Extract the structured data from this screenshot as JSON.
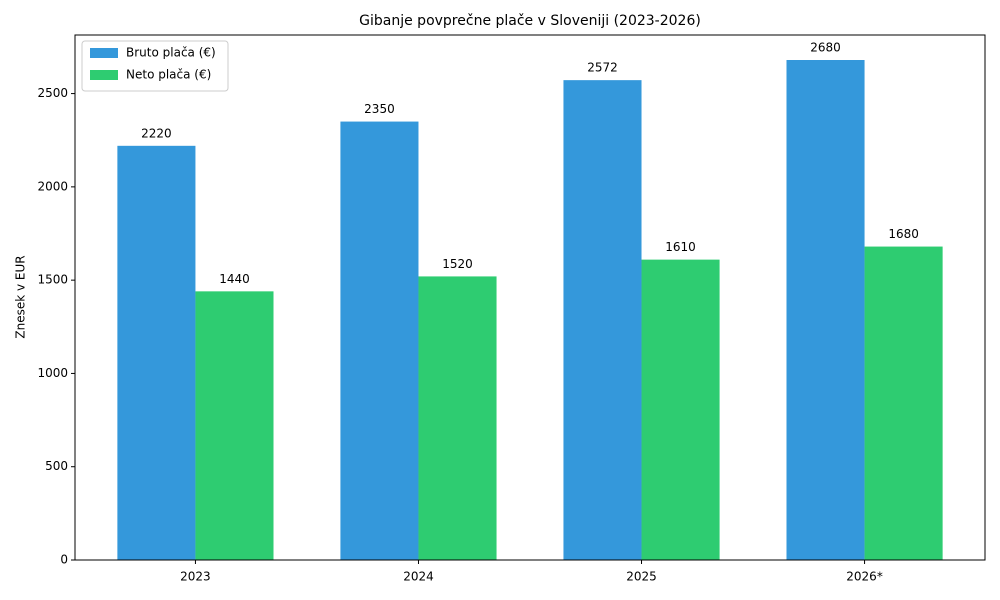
{
  "chart_data": {
    "type": "bar",
    "title": "Gibanje povprečne plače v Sloveniji (2023-2026)",
    "y_label": "Znesek v EUR",
    "categories": [
      "2023",
      "2024",
      "2025",
      "2026*"
    ],
    "series": [
      {
        "name": "Bruto plača (€)",
        "color": "#3498db",
        "values": [
          2220,
          2350,
          2572,
          2680
        ]
      },
      {
        "name": "Neto plača (€)",
        "color": "#2ecc71",
        "values": [
          1440,
          1520,
          1610,
          1680
        ]
      }
    ],
    "ylim": [
      0,
      2814
    ],
    "yticks": [
      0,
      500,
      1000,
      1500,
      2000,
      2500
    ],
    "legend": "upper left",
    "grid": false
  }
}
